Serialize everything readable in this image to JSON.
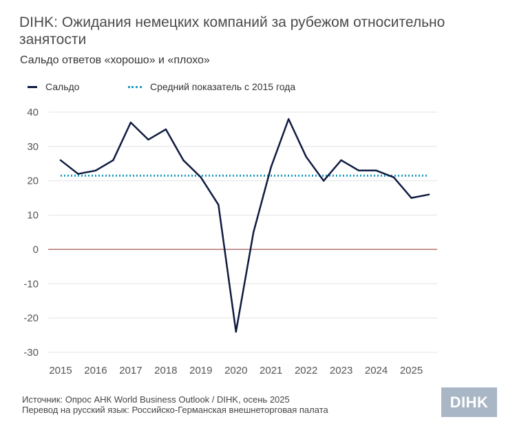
{
  "header": {
    "title": "DIHK: Ожидания немецких компаний за рубежом относительно занятости",
    "subtitle": "Сальдо ответов «хорошо» и «плохо»"
  },
  "legend": {
    "series_label": "Сальдо",
    "average_label": "Средний показатель с 2015 года"
  },
  "footer": {
    "source": "Источник: Опрос АНК World Business Outlook / DIHK, осень 2025",
    "translation": "Перевод на русский язык: Российско-Германская внешнеторговая палата"
  },
  "logo": {
    "text": "DIHK"
  },
  "colors": {
    "series": "#0e1a40",
    "average": "#1a9bbf",
    "zero_line": "#b07070",
    "grid": "#e3e3e3",
    "tick_text": "#555555",
    "logo_bg": "#a9b6c5"
  },
  "chart_data": {
    "type": "line",
    "x": [
      2015.0,
      2015.5,
      2016.0,
      2016.5,
      2017.0,
      2017.5,
      2018.0,
      2018.5,
      2019.0,
      2019.5,
      2020.0,
      2020.5,
      2021.0,
      2021.5,
      2022.0,
      2022.5,
      2023.0,
      2023.5,
      2024.0,
      2024.5,
      2025.0,
      2025.5
    ],
    "series": [
      {
        "name": "Сальдо",
        "values": [
          26,
          22,
          23,
          26,
          37,
          32,
          35,
          26,
          21,
          13,
          -24,
          5,
          24,
          38,
          27,
          20,
          26,
          23,
          23,
          21,
          15,
          16
        ]
      },
      {
        "name": "Средний показатель с 2015 года",
        "values": [
          21.5,
          21.5
        ],
        "x": [
          2015.0,
          2025.5
        ],
        "style": "dotted"
      }
    ],
    "x_ticks": [
      "2015",
      "2016",
      "2017",
      "2018",
      "2019",
      "2020",
      "2021",
      "2022",
      "2023",
      "2024",
      "2025"
    ],
    "y_ticks": [
      "40",
      "30",
      "20",
      "10",
      "0",
      "-10",
      "-20",
      "-30"
    ],
    "xlim": [
      2015,
      2025.5
    ],
    "ylim": [
      -30,
      40
    ],
    "title": "DIHK: Ожидания немецких компаний за рубежом относительно занятости",
    "subtitle": "Сальдо ответов «хорошо» и «плохо»",
    "grid": true,
    "legend_position": "top-left"
  }
}
